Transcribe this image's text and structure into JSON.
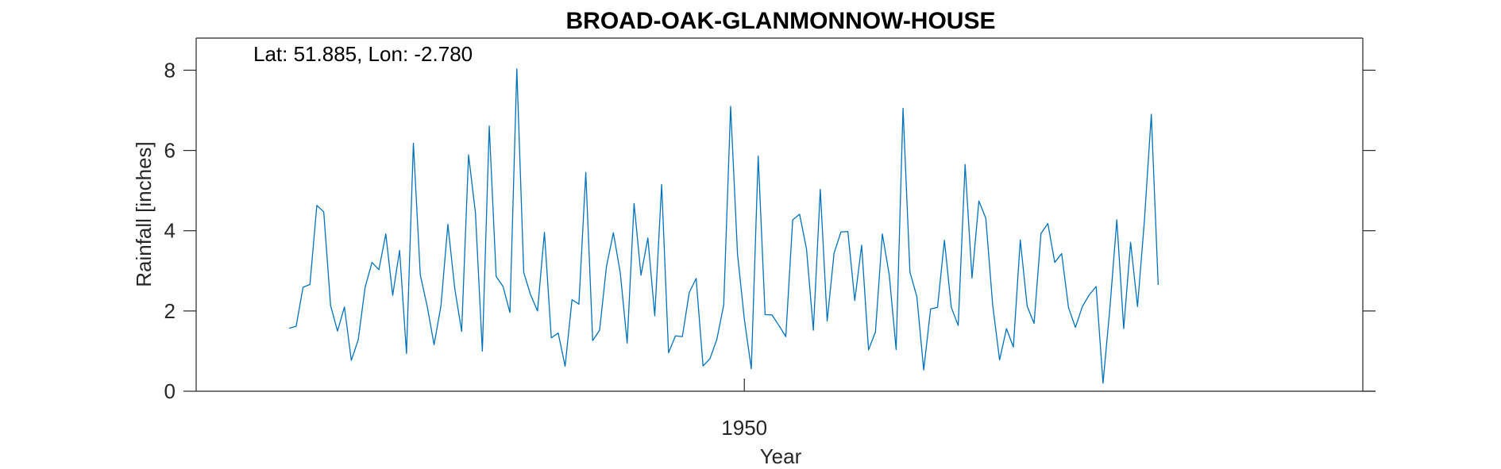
{
  "chart_data": {
    "type": "line",
    "title": "BROAD-OAK-GLANMONNOW-HOUSE",
    "xlabel": "Year",
    "ylabel": "Rainfall [inches]",
    "annotation": "Lat: 51.885, Lon: -2.780",
    "xlim": [
      1936.75,
      1964.95
    ],
    "ylim": [
      0,
      8.8
    ],
    "x_ticks": [
      1950
    ],
    "x_tick_labels": [
      "1950"
    ],
    "y_ticks": [
      0,
      2,
      4,
      6,
      8
    ],
    "y_tick_labels": [
      "0",
      "2",
      "4",
      "6",
      "8"
    ],
    "grid": false,
    "line_color": "#0072bd",
    "series": [
      {
        "x_start": 1939.0,
        "x_step": 0.1667,
        "values": [
          1.57,
          1.62,
          2.59,
          2.66,
          4.63,
          4.47,
          2.13,
          1.5,
          2.1,
          0.77,
          1.28,
          2.59,
          3.21,
          3.03,
          3.92,
          2.39,
          3.51,
          0.94,
          6.18,
          2.9,
          2.12,
          1.16,
          2.13,
          4.16,
          2.56,
          1.49,
          5.89,
          4.44,
          1.0,
          6.61,
          2.86,
          2.61,
          1.96,
          8.03,
          2.96,
          2.4,
          2.0,
          3.96,
          1.33,
          1.45,
          0.62,
          2.28,
          2.17,
          5.45,
          1.26,
          1.52,
          3.11,
          3.95,
          2.95,
          1.2,
          4.68,
          2.89,
          3.82,
          1.88,
          5.15,
          0.96,
          1.38,
          1.36,
          2.46,
          2.81,
          0.63,
          0.81,
          1.29,
          2.15,
          7.1,
          3.42,
          1.78,
          0.56,
          5.86,
          1.91,
          1.9,
          1.64,
          1.36,
          4.27,
          4.41,
          3.55,
          1.52,
          5.03,
          1.75,
          3.44,
          3.97,
          3.98,
          2.26,
          3.64,
          1.03,
          1.48,
          3.92,
          2.9,
          1.04,
          7.05,
          2.97,
          2.36,
          0.53,
          2.05,
          2.09,
          3.76,
          2.09,
          1.64,
          5.65,
          2.82,
          4.74,
          4.31,
          2.15,
          0.78,
          1.56,
          1.1,
          3.77,
          2.12,
          1.69,
          3.93,
          4.18,
          3.21,
          3.43,
          2.08,
          1.59,
          2.11,
          2.4,
          2.61,
          0.2,
          2.08,
          4.27,
          1.56,
          3.71,
          2.11,
          4.25,
          6.9,
          2.65
        ]
      }
    ]
  }
}
